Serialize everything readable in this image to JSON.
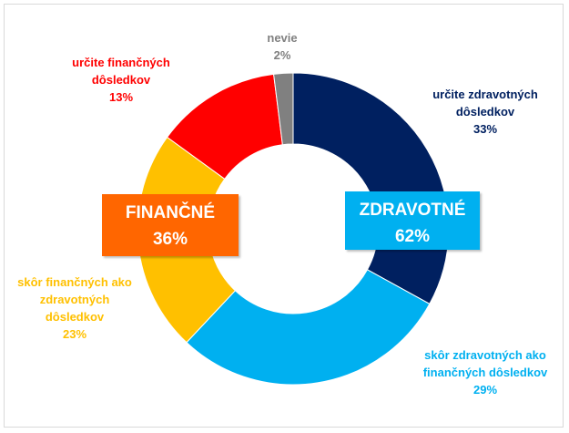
{
  "chart_data": {
    "type": "pie",
    "style": "donut",
    "slices": [
      {
        "label_lines": [
          "určite zdravotných",
          "dôsledkov"
        ],
        "value": 33,
        "value_label": "33%",
        "color": "#002060"
      },
      {
        "label_lines": [
          "skôr zdravotných ako",
          "finančných dôsledkov"
        ],
        "value": 29,
        "value_label": "29%",
        "color": "#00B0F0"
      },
      {
        "label_lines": [
          "skôr finančných ako",
          "zdravotných",
          "dôsledkov"
        ],
        "value": 23,
        "value_label": "23%",
        "color": "#FFC000"
      },
      {
        "label_lines": [
          "určite finančných",
          "dôsledkov"
        ],
        "value": 13,
        "value_label": "13%",
        "color": "#FF0000"
      },
      {
        "label_lines": [
          "nevie"
        ],
        "value": 2,
        "value_label": "2%",
        "color": "#808080"
      }
    ],
    "groups": [
      {
        "name": "FINANČNÉ",
        "value_label": "36%",
        "color": "#FF6600"
      },
      {
        "name": "ZDRAVOTNÉ",
        "value_label": "62%",
        "color": "#00B0F0"
      }
    ]
  }
}
